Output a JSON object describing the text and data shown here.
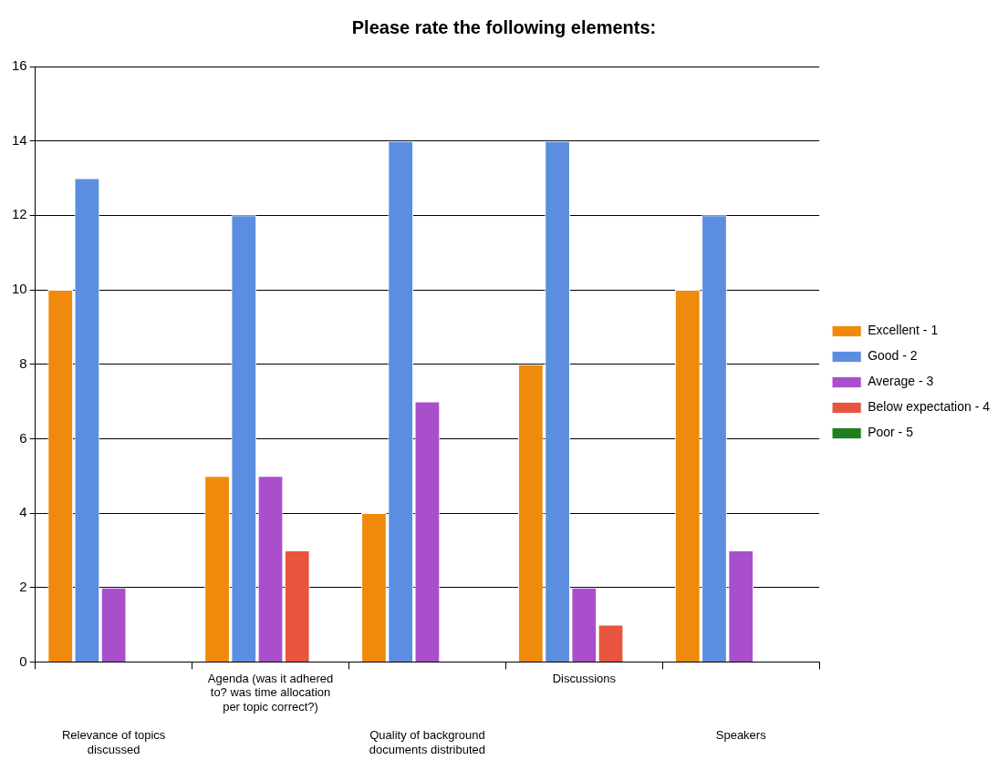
{
  "chart_data": {
    "type": "bar",
    "title": "Please rate the following elements:",
    "categories": [
      "Relevance of topics discussed",
      "Agenda (was it adhered to? was time allocation per topic correct?)",
      "Quality of background documents distributed",
      "Discussions",
      "Speakers"
    ],
    "series": [
      {
        "name": "Excellent - 1",
        "color": "#f08a0c",
        "values": [
          10,
          5,
          4,
          8,
          10
        ]
      },
      {
        "name": "Good - 2",
        "color": "#5b8ee0",
        "values": [
          13,
          12,
          14,
          14,
          12
        ]
      },
      {
        "name": "Average - 3",
        "color": "#a94fcc",
        "values": [
          2,
          5,
          7,
          2,
          3
        ]
      },
      {
        "name": "Below expectation - 4",
        "color": "#e8553e",
        "values": [
          0,
          3,
          0,
          1,
          0
        ]
      },
      {
        "name": "Poor - 5",
        "color": "#1f7f1f",
        "values": [
          0,
          0,
          0,
          0,
          0
        ]
      }
    ],
    "ylim": [
      0,
      16
    ],
    "yticks": [
      0,
      2,
      4,
      6,
      8,
      10,
      12,
      14,
      16
    ],
    "grid": "y",
    "legend": "right"
  }
}
